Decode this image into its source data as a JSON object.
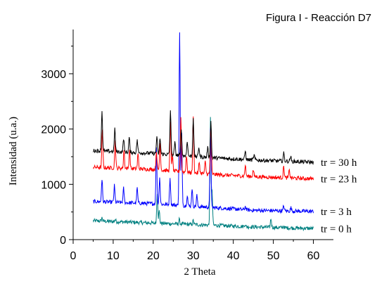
{
  "chart_data": {
    "type": "line",
    "title": "Figura I - Reacción D7",
    "xlabel": "2 Theta",
    "ylabel": "Intensidad (u.a.)",
    "xlim": [
      0,
      65
    ],
    "ylim": [
      0,
      3800
    ],
    "xticks": [
      0,
      10,
      20,
      30,
      40,
      50,
      60
    ],
    "yticks": [
      0,
      1000,
      2000,
      3000
    ],
    "grid": false,
    "legend": "labels at right end of each trace",
    "series": [
      {
        "name": "tr = 0 h",
        "color": "#008080",
        "baseline": [
          [
            5,
            340
          ],
          [
            20,
            300
          ],
          [
            35,
            260
          ],
          [
            45,
            230
          ],
          [
            60,
            200
          ]
        ],
        "peaks": [
          [
            7.2,
            60
          ],
          [
            10.5,
            40
          ],
          [
            21.0,
            560
          ],
          [
            21.5,
            220
          ],
          [
            26.5,
            80
          ],
          [
            30.0,
            70
          ],
          [
            34.3,
            1930
          ],
          [
            34.7,
            600
          ],
          [
            42.9,
            40
          ],
          [
            49.4,
            160
          ],
          [
            52.5,
            30
          ]
        ]
      },
      {
        "name": "tr = 3 h",
        "color": "#0000ff",
        "baseline": [
          [
            5,
            690
          ],
          [
            20,
            650
          ],
          [
            35,
            580
          ],
          [
            45,
            530
          ],
          [
            60,
            510
          ]
        ],
        "peaks": [
          [
            7.2,
            410
          ],
          [
            10.3,
            300
          ],
          [
            12.6,
            260
          ],
          [
            16.0,
            270
          ],
          [
            20.8,
            1000
          ],
          [
            21.6,
            500
          ],
          [
            24.2,
            500
          ],
          [
            26.6,
            3150
          ],
          [
            27.1,
            1300
          ],
          [
            28.5,
            200
          ],
          [
            29.7,
            330
          ],
          [
            30.9,
            200
          ],
          [
            34.3,
            1450
          ],
          [
            43.0,
            60
          ],
          [
            52.6,
            90
          ],
          [
            54.4,
            60
          ]
        ]
      },
      {
        "name": "tr = 23 h",
        "color": "#ff0000",
        "baseline": [
          [
            5,
            1310
          ],
          [
            20,
            1270
          ],
          [
            35,
            1180
          ],
          [
            45,
            1140
          ],
          [
            60,
            1100
          ]
        ],
        "peaks": [
          [
            7.3,
            700
          ],
          [
            10.5,
            490
          ],
          [
            12.7,
            330
          ],
          [
            14.1,
            360
          ],
          [
            16.2,
            270
          ],
          [
            20.8,
            340
          ],
          [
            21.7,
            480
          ],
          [
            24.3,
            860
          ],
          [
            24.8,
            280
          ],
          [
            26.9,
            1000
          ],
          [
            28.3,
            300
          ],
          [
            30.0,
            1000
          ],
          [
            31.5,
            200
          ],
          [
            33.0,
            220
          ],
          [
            34.4,
            900
          ],
          [
            43.0,
            200
          ],
          [
            45.0,
            120
          ],
          [
            52.6,
            200
          ],
          [
            54.0,
            140
          ]
        ]
      },
      {
        "name": "tr = 30 h",
        "color": "#000000",
        "baseline": [
          [
            5,
            1610
          ],
          [
            20,
            1560
          ],
          [
            35,
            1480
          ],
          [
            45,
            1440
          ],
          [
            60,
            1400
          ]
        ],
        "peaks": [
          [
            7.2,
            730
          ],
          [
            10.4,
            420
          ],
          [
            12.6,
            250
          ],
          [
            14.0,
            270
          ],
          [
            16.0,
            230
          ],
          [
            20.9,
            310
          ],
          [
            21.7,
            290
          ],
          [
            24.3,
            820
          ],
          [
            25.4,
            220
          ],
          [
            27.0,
            500
          ],
          [
            28.5,
            280
          ],
          [
            30.0,
            700
          ],
          [
            31.4,
            180
          ],
          [
            33.6,
            180
          ],
          [
            34.4,
            650
          ],
          [
            43.0,
            160
          ],
          [
            45.2,
            90
          ],
          [
            52.6,
            140
          ],
          [
            54.3,
            90
          ]
        ]
      }
    ]
  }
}
